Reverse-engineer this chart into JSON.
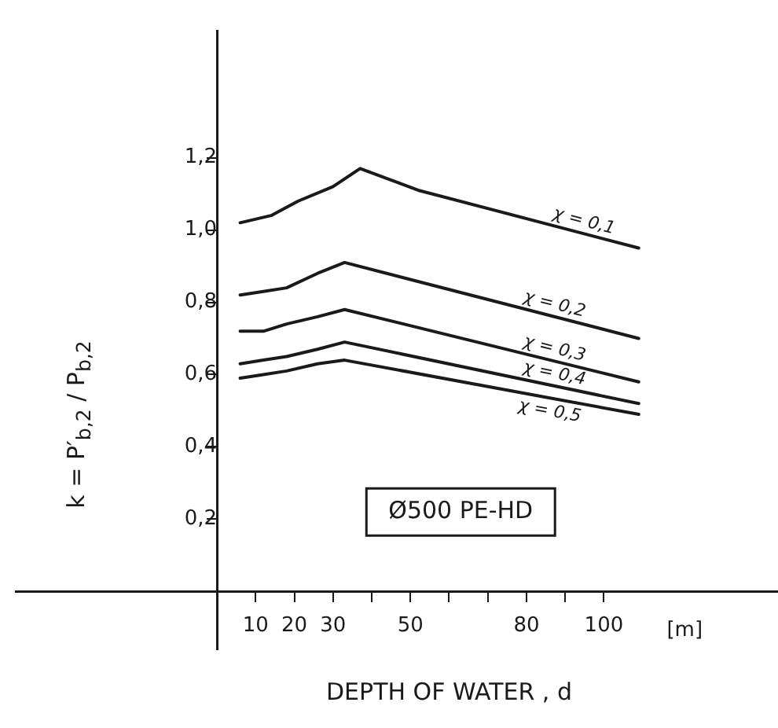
{
  "chart_data": {
    "type": "line",
    "xlabel": "DEPTH OF WATER , d",
    "ylabel": "k = P′$_{b,2}$ / P$_{b,2}$",
    "annotations": [
      "Ø500 PE-HD",
      "[m]"
    ],
    "xlim": [
      -52,
      145
    ],
    "ylim": [
      -0.16,
      1.55
    ],
    "xticks": [
      {
        "value": 10,
        "label": "10"
      },
      {
        "value": 20,
        "label": "20"
      },
      {
        "value": 30,
        "label": "30"
      },
      {
        "value": 40,
        "label": null
      },
      {
        "value": 50,
        "label": "50"
      },
      {
        "value": 60,
        "label": null
      },
      {
        "value": 70,
        "label": null
      },
      {
        "value": 80,
        "label": "80"
      },
      {
        "value": 90,
        "label": null
      },
      {
        "value": 100,
        "label": "100"
      }
    ],
    "yticks": [
      {
        "value": 0.2,
        "label": "0,2"
      },
      {
        "value": 0.4,
        "label": "0,4"
      },
      {
        "value": 0.6,
        "label": "0,6"
      },
      {
        "value": 0.8,
        "label": "0,8"
      },
      {
        "value": 1.0,
        "label": "1,0"
      },
      {
        "value": 1.2,
        "label": "1,2"
      }
    ],
    "grid": false,
    "legend": false,
    "marker": "none",
    "line_style": "solid",
    "series": [
      {
        "name": "χ = 0,1",
        "color": "#1a1a1a",
        "x": [
          6,
          14,
          21,
          30,
          37,
          52,
          109
        ],
        "values": [
          1.02,
          1.04,
          1.08,
          1.12,
          1.17,
          1.11,
          0.95
        ]
      },
      {
        "name": "χ = 0,2",
        "color": "#1a1a1a",
        "x": [
          6,
          12,
          18,
          26,
          33,
          109
        ],
        "values": [
          0.82,
          0.83,
          0.84,
          0.88,
          0.91,
          0.7
        ]
      },
      {
        "name": "χ = 0,3",
        "color": "#1a1a1a",
        "x": [
          6,
          12,
          18,
          26,
          33,
          109
        ],
        "values": [
          0.72,
          0.72,
          0.74,
          0.76,
          0.78,
          0.58
        ]
      },
      {
        "name": "χ = 0,4",
        "color": "#1a1a1a",
        "x": [
          6,
          12,
          18,
          26,
          33,
          109
        ],
        "values": [
          0.63,
          0.64,
          0.65,
          0.67,
          0.69,
          0.52
        ]
      },
      {
        "name": "χ = 0,5",
        "color": "#1a1a1a",
        "x": [
          6,
          12,
          18,
          26,
          33,
          109
        ],
        "values": [
          0.59,
          0.6,
          0.61,
          0.63,
          0.64,
          0.49
        ]
      }
    ]
  }
}
